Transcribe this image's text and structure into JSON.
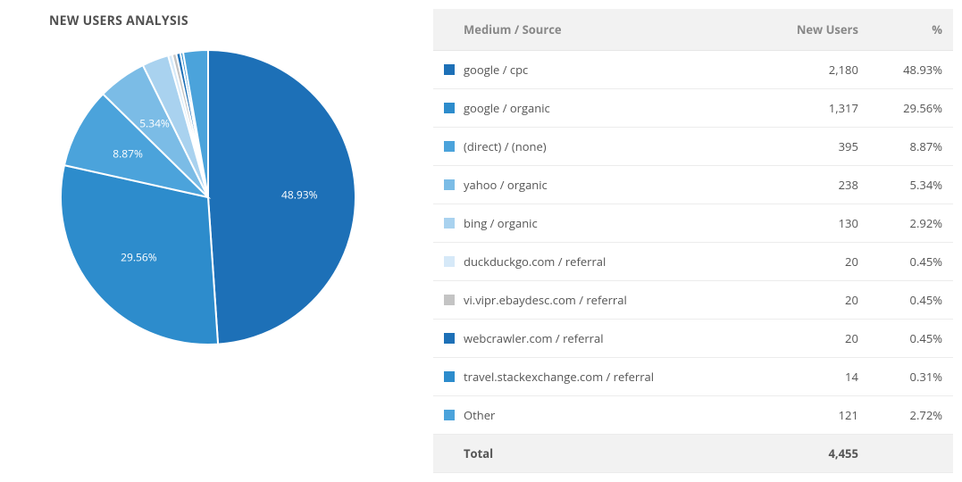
{
  "title": "NEW USERS ANALYSIS",
  "chart": {
    "type": "pie",
    "background_color": "#ffffff",
    "stroke_color": "#ffffff",
    "stroke_width": 2,
    "label_fontsize": 12,
    "label_color_light": "#ffffff",
    "label_color_dark": "#555555",
    "radius": 165,
    "label_threshold_pct": 5.0
  },
  "table": {
    "columns": {
      "source": "Medium / Source",
      "users": "New Users",
      "pct": "%"
    },
    "total_label": "Total",
    "total_users": "4,455",
    "total_pct": "",
    "header_bg": "#f2f2f2",
    "header_color": "#888888",
    "row_border": "#ececec",
    "text_color": "#555555",
    "fontsize": 13
  },
  "rows": [
    {
      "label": "google / cpc",
      "users": "2,180",
      "pct": "48.93%",
      "value": 48.93,
      "color": "#1d70b7"
    },
    {
      "label": "google / organic",
      "users": "1,317",
      "pct": "29.56%",
      "value": 29.56,
      "color": "#2d8ccc"
    },
    {
      "label": "(direct) / (none)",
      "users": "395",
      "pct": "8.87%",
      "value": 8.87,
      "color": "#4ba3db"
    },
    {
      "label": "yahoo / organic",
      "users": "238",
      "pct": "5.34%",
      "value": 5.34,
      "color": "#7bbce6"
    },
    {
      "label": "bing / organic",
      "users": "130",
      "pct": "2.92%",
      "value": 2.92,
      "color": "#a9d2ef"
    },
    {
      "label": "duckduckgo.com / referral",
      "users": "20",
      "pct": "0.45%",
      "value": 0.45,
      "color": "#d6e9f8"
    },
    {
      "label": "vi.vipr.ebaydesc.com / referral",
      "users": "20",
      "pct": "0.45%",
      "value": 0.45,
      "color": "#c4c4c4"
    },
    {
      "label": "webcrawler.com / referral",
      "users": "20",
      "pct": "0.45%",
      "value": 0.45,
      "color": "#1d70b7"
    },
    {
      "label": "travel.stackexchange.com / referral",
      "users": "14",
      "pct": "0.31%",
      "value": 0.31,
      "color": "#2d8ccc"
    },
    {
      "label": "Other",
      "users": "121",
      "pct": "2.72%",
      "value": 2.72,
      "color": "#4ba3db"
    }
  ]
}
